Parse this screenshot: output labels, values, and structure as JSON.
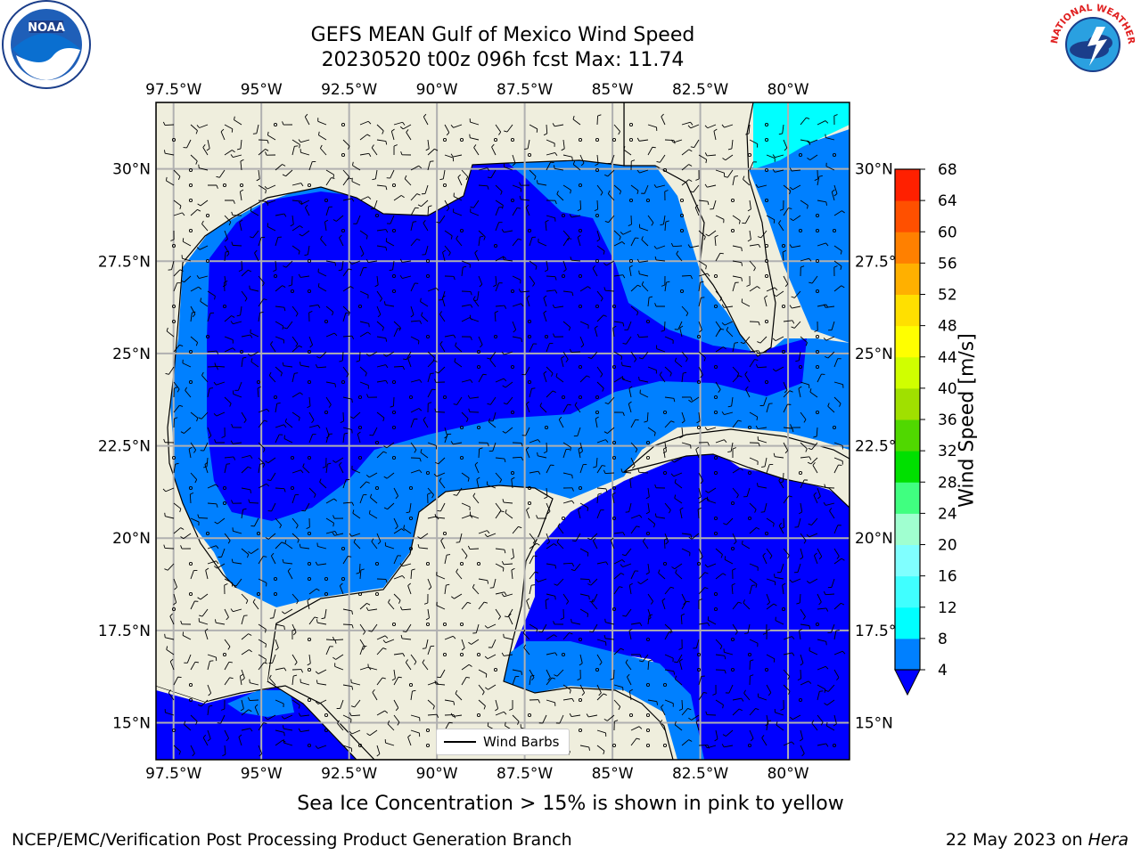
{
  "title_line1": "GEFS MEAN Gulf of Mexico Wind Speed",
  "title_line2": "20230520 t00z 096h fcst   Max: 11.74",
  "note": "Sea Ice Concentration > 15% is shown in pink to yellow",
  "credit": "NCEP/EMC/Verification Post Processing Product Generation Branch",
  "date_prefix": "22 May 2023 on ",
  "date_host": "Hera",
  "legend_label": "Wind Barbs",
  "logos": {
    "left": "NOAA",
    "right": "NATIONAL WEATHER SERVICE"
  },
  "colorbar": {
    "label": "Wind Speed [m/s]",
    "ticks": [
      "4",
      "8",
      "12",
      "16",
      "20",
      "24",
      "28",
      "32",
      "36",
      "40",
      "44",
      "48",
      "52",
      "56",
      "60",
      "64",
      "68"
    ],
    "colors": [
      "#0080ff",
      "#00ffff",
      "#40ffff",
      "#80ffff",
      "#a0ffd0",
      "#40ff80",
      "#00e000",
      "#50d800",
      "#a0e000",
      "#d0ff00",
      "#ffff00",
      "#ffe000",
      "#ffb000",
      "#ff8000",
      "#ff5000",
      "#ff2000"
    ],
    "extend_color": "#0000ff"
  },
  "map": {
    "lon_labels": [
      "97.5°W",
      "95°W",
      "92.5°W",
      "90°W",
      "87.5°W",
      "85°W",
      "82.5°W",
      "80°W"
    ],
    "lat_labels": [
      "30°N",
      "27.5°N",
      "25°N",
      "22.5°N",
      "20°N",
      "17.5°N",
      "15°N"
    ],
    "lon_range": [
      -98,
      -78.25
    ],
    "lat_range": [
      14,
      31.8
    ],
    "land_color": "#efeedd",
    "colors": {
      "dark": "#0000ff",
      "medium": "#0080ff",
      "cyan": "#00ffff"
    }
  }
}
